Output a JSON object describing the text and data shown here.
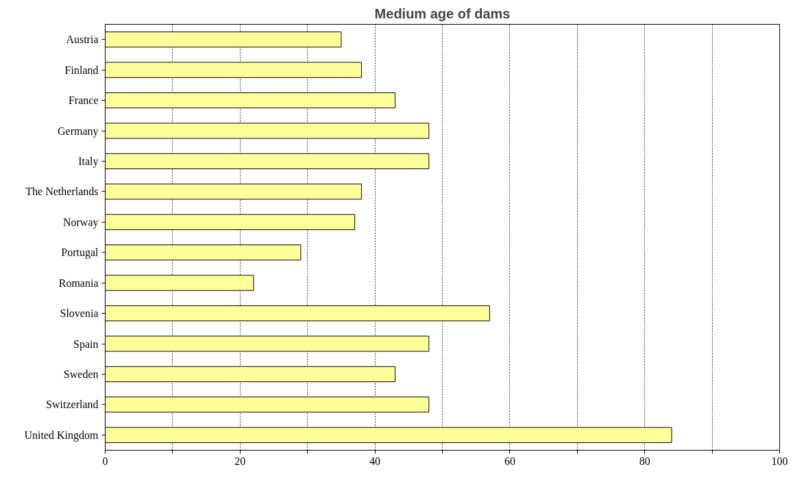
{
  "chart_data": {
    "type": "bar",
    "orientation": "horizontal",
    "title": "Medium age of dams",
    "categories": [
      "Austria",
      "Finland",
      "France",
      "Germany",
      "Italy",
      "The Netherlands",
      "Norway",
      "Portugal",
      "Romania",
      "Slovenia",
      "Spain",
      "Sweden",
      "Switzerland",
      "United Kingdom"
    ],
    "values": [
      35,
      38,
      43,
      48,
      48,
      38,
      37,
      29,
      22,
      57,
      48,
      43,
      48,
      84
    ],
    "color": "#ffff99",
    "xlim": [
      0,
      100
    ],
    "xticks": [
      0,
      {
        "value": 10,
        "label": null
      },
      20,
      {
        "value": 30,
        "label": null
      },
      40,
      {
        "value": 50,
        "label": null
      },
      60,
      {
        "value": 70,
        "label": null
      },
      80,
      {
        "value": 90,
        "label": null
      },
      100
    ],
    "grid": "x"
  }
}
